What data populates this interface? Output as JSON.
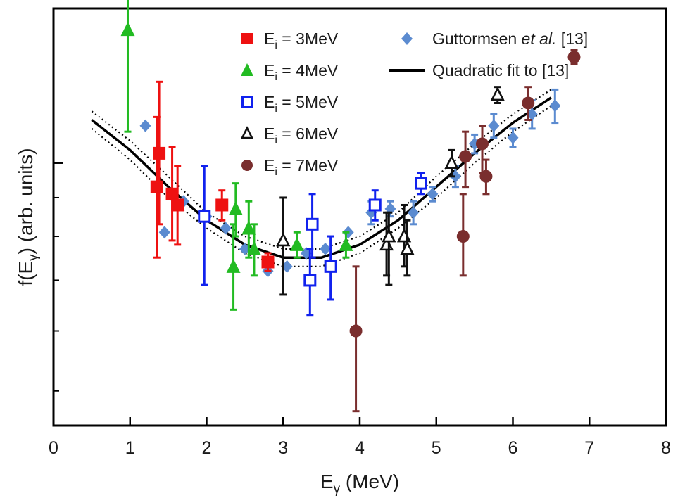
{
  "chart_data": {
    "type": "scatter",
    "xlabel": "E",
    "xlabel_sub": "γ",
    "xlabel_unit": " (MeV)",
    "ylabel": "f(E",
    "ylabel_sub": "γ",
    "ylabel_unit": ") (arb. units)",
    "xlim": [
      0,
      8
    ],
    "x_ticks": [
      0,
      1,
      2,
      3,
      4,
      5,
      6,
      7,
      8
    ],
    "y_scale": "log",
    "y_tick_labels": "none",
    "grid": false,
    "legend_placement": "top",
    "series": [
      {
        "name_main": "E",
        "name_sub": "i",
        "name_rest": " = 3MeV",
        "marker": "square-filled",
        "color": "#ee1111",
        "points": [
          {
            "x": 1.35,
            "y": 0.93,
            "lo": 0.75,
            "hi": 1.15
          },
          {
            "x": 1.38,
            "y": 1.03,
            "lo": 0.83,
            "hi": 1.28
          },
          {
            "x": 1.55,
            "y": 0.91,
            "lo": 0.79,
            "hi": 1.05
          },
          {
            "x": 1.62,
            "y": 0.88,
            "lo": 0.78,
            "hi": 0.99
          },
          {
            "x": 2.2,
            "y": 0.88,
            "lo": 0.84,
            "hi": 0.92
          },
          {
            "x": 2.8,
            "y": 0.74,
            "lo": 0.72,
            "hi": 0.76
          }
        ]
      },
      {
        "name_main": "E",
        "name_sub": "i",
        "name_rest": " = 4MeV",
        "marker": "triangle-filled",
        "color": "#22bb22",
        "points": [
          {
            "x": 0.97,
            "y": 1.5,
            "lo": 1.1,
            "hi": 1.95
          },
          {
            "x": 2.35,
            "y": 0.73,
            "lo": 0.64,
            "hi": 0.83
          },
          {
            "x": 2.38,
            "y": 0.87,
            "lo": 0.8,
            "hi": 0.94
          },
          {
            "x": 2.55,
            "y": 0.82,
            "lo": 0.75,
            "hi": 0.89
          },
          {
            "x": 2.62,
            "y": 0.77,
            "lo": 0.71,
            "hi": 0.83
          },
          {
            "x": 3.18,
            "y": 0.78,
            "lo": 0.75,
            "hi": 0.81
          },
          {
            "x": 3.82,
            "y": 0.78,
            "lo": 0.75,
            "hi": 0.81
          }
        ]
      },
      {
        "name_main": "E",
        "name_sub": "i",
        "name_rest": " = 5MeV",
        "marker": "square-open",
        "color": "#1122ee",
        "points": [
          {
            "x": 1.97,
            "y": 0.85,
            "lo": 0.69,
            "hi": 0.99
          },
          {
            "x": 3.35,
            "y": 0.7,
            "lo": 0.63,
            "hi": 0.77
          },
          {
            "x": 3.38,
            "y": 0.83,
            "lo": 0.75,
            "hi": 0.91
          },
          {
            "x": 3.62,
            "y": 0.73,
            "lo": 0.66,
            "hi": 0.8
          },
          {
            "x": 4.2,
            "y": 0.88,
            "lo": 0.84,
            "hi": 0.92
          },
          {
            "x": 4.8,
            "y": 0.94,
            "lo": 0.91,
            "hi": 0.97
          }
        ]
      },
      {
        "name_main": "E",
        "name_sub": "i",
        "name_rest": " = 6MeV",
        "marker": "triangle-open",
        "color": "#111111",
        "points": [
          {
            "x": 3.0,
            "y": 0.79,
            "lo": 0.67,
            "hi": 0.9
          },
          {
            "x": 4.35,
            "y": 0.78,
            "lo": 0.71,
            "hi": 0.86
          },
          {
            "x": 4.38,
            "y": 0.8,
            "lo": 0.69,
            "hi": 0.86
          },
          {
            "x": 4.58,
            "y": 0.8,
            "lo": 0.73,
            "hi": 0.88
          },
          {
            "x": 4.62,
            "y": 0.77,
            "lo": 0.71,
            "hi": 0.84
          },
          {
            "x": 5.2,
            "y": 1.0,
            "lo": 0.96,
            "hi": 1.04
          },
          {
            "x": 5.8,
            "y": 1.23,
            "lo": 1.2,
            "hi": 1.26
          }
        ]
      },
      {
        "name_main": "E",
        "name_sub": "i",
        "name_rest": " = 7MeV",
        "marker": "circle-filled",
        "color": "#7a2e2e",
        "points": [
          {
            "x": 3.95,
            "y": 0.6,
            "lo": 0.47,
            "hi": 0.73
          },
          {
            "x": 5.35,
            "y": 0.8,
            "lo": 0.71,
            "hi": 0.91
          },
          {
            "x": 5.38,
            "y": 1.02,
            "lo": 0.93,
            "hi": 1.1
          },
          {
            "x": 5.6,
            "y": 1.06,
            "lo": 0.97,
            "hi": 1.12
          },
          {
            "x": 5.65,
            "y": 0.96,
            "lo": 0.91,
            "hi": 1.01
          },
          {
            "x": 6.2,
            "y": 1.2,
            "lo": 1.14,
            "hi": 1.26
          },
          {
            "x": 6.8,
            "y": 1.38,
            "lo": 1.35,
            "hi": 1.41
          }
        ]
      },
      {
        "name_main": "Guttormsen ",
        "name_italic": "et al.",
        "name_rest": " [13]",
        "marker": "diamond-filled",
        "color": "#5b8bd0",
        "points": [
          {
            "x": 1.2,
            "y": 1.12,
            "lo": 1.12,
            "hi": 1.12
          },
          {
            "x": 1.45,
            "y": 0.81,
            "lo": 0.81,
            "hi": 0.81
          },
          {
            "x": 1.7,
            "y": 0.89,
            "lo": 0.89,
            "hi": 0.89
          },
          {
            "x": 2.0,
            "y": 0.85,
            "lo": 0.85,
            "hi": 0.85
          },
          {
            "x": 2.25,
            "y": 0.82,
            "lo": 0.82,
            "hi": 0.82
          },
          {
            "x": 2.5,
            "y": 0.77,
            "lo": 0.77,
            "hi": 0.77
          },
          {
            "x": 2.8,
            "y": 0.72,
            "lo": 0.72,
            "hi": 0.72
          },
          {
            "x": 3.05,
            "y": 0.73,
            "lo": 0.73,
            "hi": 0.73
          },
          {
            "x": 3.3,
            "y": 0.76,
            "lo": 0.76,
            "hi": 0.76
          },
          {
            "x": 3.55,
            "y": 0.77,
            "lo": 0.77,
            "hi": 0.77
          },
          {
            "x": 3.85,
            "y": 0.81,
            "lo": 0.81,
            "hi": 0.81
          },
          {
            "x": 4.15,
            "y": 0.86,
            "lo": 0.83,
            "hi": 0.89
          },
          {
            "x": 4.4,
            "y": 0.87,
            "lo": 0.85,
            "hi": 0.89
          },
          {
            "x": 4.7,
            "y": 0.86,
            "lo": 0.83,
            "hi": 0.89
          },
          {
            "x": 4.95,
            "y": 0.91,
            "lo": 0.89,
            "hi": 0.93
          },
          {
            "x": 5.25,
            "y": 0.96,
            "lo": 0.93,
            "hi": 0.99
          },
          {
            "x": 5.5,
            "y": 1.06,
            "lo": 1.03,
            "hi": 1.09
          },
          {
            "x": 5.75,
            "y": 1.12,
            "lo": 1.08,
            "hi": 1.16
          },
          {
            "x": 6.0,
            "y": 1.08,
            "lo": 1.05,
            "hi": 1.11
          },
          {
            "x": 6.25,
            "y": 1.16,
            "lo": 1.11,
            "hi": 1.21
          },
          {
            "x": 6.55,
            "y": 1.19,
            "lo": 1.13,
            "hi": 1.25
          }
        ]
      }
    ],
    "fit": {
      "name": "Quadratic fit to [13]",
      "color": "#000000",
      "x": [
        0.5,
        1.0,
        1.5,
        2.0,
        2.5,
        3.0,
        3.5,
        4.0,
        4.5,
        5.0,
        5.5,
        6.0,
        6.5
      ],
      "y": [
        1.14,
        1.04,
        0.93,
        0.84,
        0.78,
        0.75,
        0.75,
        0.78,
        0.84,
        0.93,
        1.03,
        1.13,
        1.22
      ],
      "band_lower": [
        1.11,
        1.01,
        0.9,
        0.82,
        0.76,
        0.73,
        0.73,
        0.76,
        0.82,
        0.9,
        1.0,
        1.1,
        1.19
      ],
      "band_upper": [
        1.17,
        1.07,
        0.96,
        0.86,
        0.8,
        0.77,
        0.77,
        0.8,
        0.86,
        0.96,
        1.06,
        1.16,
        1.25
      ]
    }
  }
}
